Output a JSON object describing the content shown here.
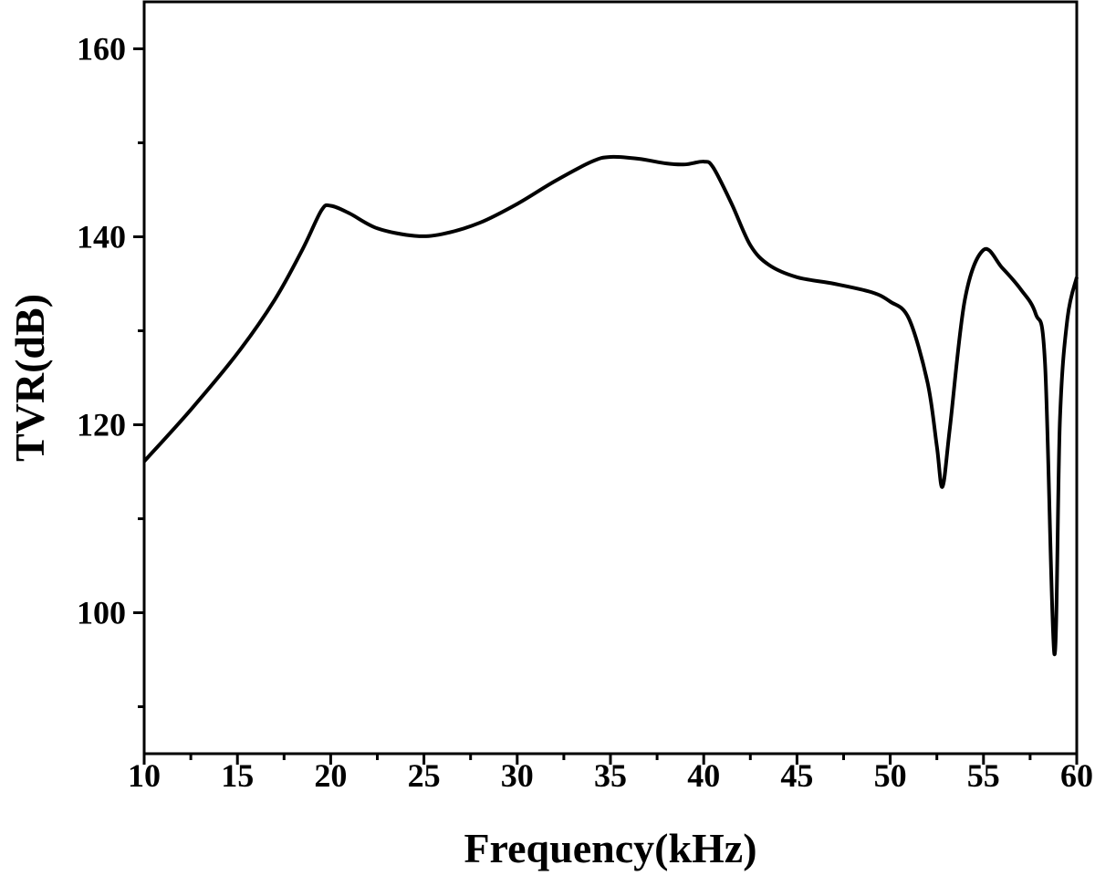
{
  "chart_data": {
    "type": "line",
    "x_label": "Frequency(kHz)",
    "y_label": "TVR(dB)",
    "x": [
      10,
      12.5,
      15,
      17,
      18.5,
      19.5,
      20,
      21,
      22.5,
      24.5,
      26,
      28,
      30,
      32,
      34,
      35,
      36.5,
      38,
      39,
      40,
      40.5,
      41.5,
      42.5,
      43.5,
      45,
      47,
      49,
      50,
      51,
      52,
      52.5,
      52.8,
      53.2,
      54,
      55,
      56,
      57,
      57.8,
      58.3,
      58.8,
      59.1,
      59.5,
      60
    ],
    "series": [
      {
        "color": "#000000",
        "values": [
          116.1,
          121.6,
          127.6,
          133.3,
          138.7,
          142.8,
          143.3,
          142.5,
          140.9,
          140.1,
          140.3,
          141.5,
          143.5,
          145.9,
          148.0,
          148.5,
          148.3,
          147.8,
          147.7,
          148.0,
          147.4,
          143.5,
          139.1,
          137.0,
          135.7,
          135.0,
          134.1,
          133.1,
          131.3,
          124.5,
          117.7,
          113.4,
          119.7,
          133.3,
          138.6,
          136.7,
          134.4,
          131.8,
          126.5,
          95.6,
          120.6,
          131.3,
          135.7
        ]
      }
    ],
    "xlim": [
      10,
      60
    ],
    "xticks": [
      10,
      15,
      20,
      25,
      30,
      35,
      40,
      45,
      50,
      55,
      60
    ],
    "xminorticks": [
      12.5,
      17.5,
      22.5,
      27.5,
      32.5,
      37.5,
      42.5,
      47.5,
      52.5,
      57.5
    ],
    "ylim": [
      85,
      165
    ],
    "yticks": [
      100,
      120,
      140,
      160
    ],
    "yminorticks": [
      90,
      110,
      130,
      150
    ]
  }
}
